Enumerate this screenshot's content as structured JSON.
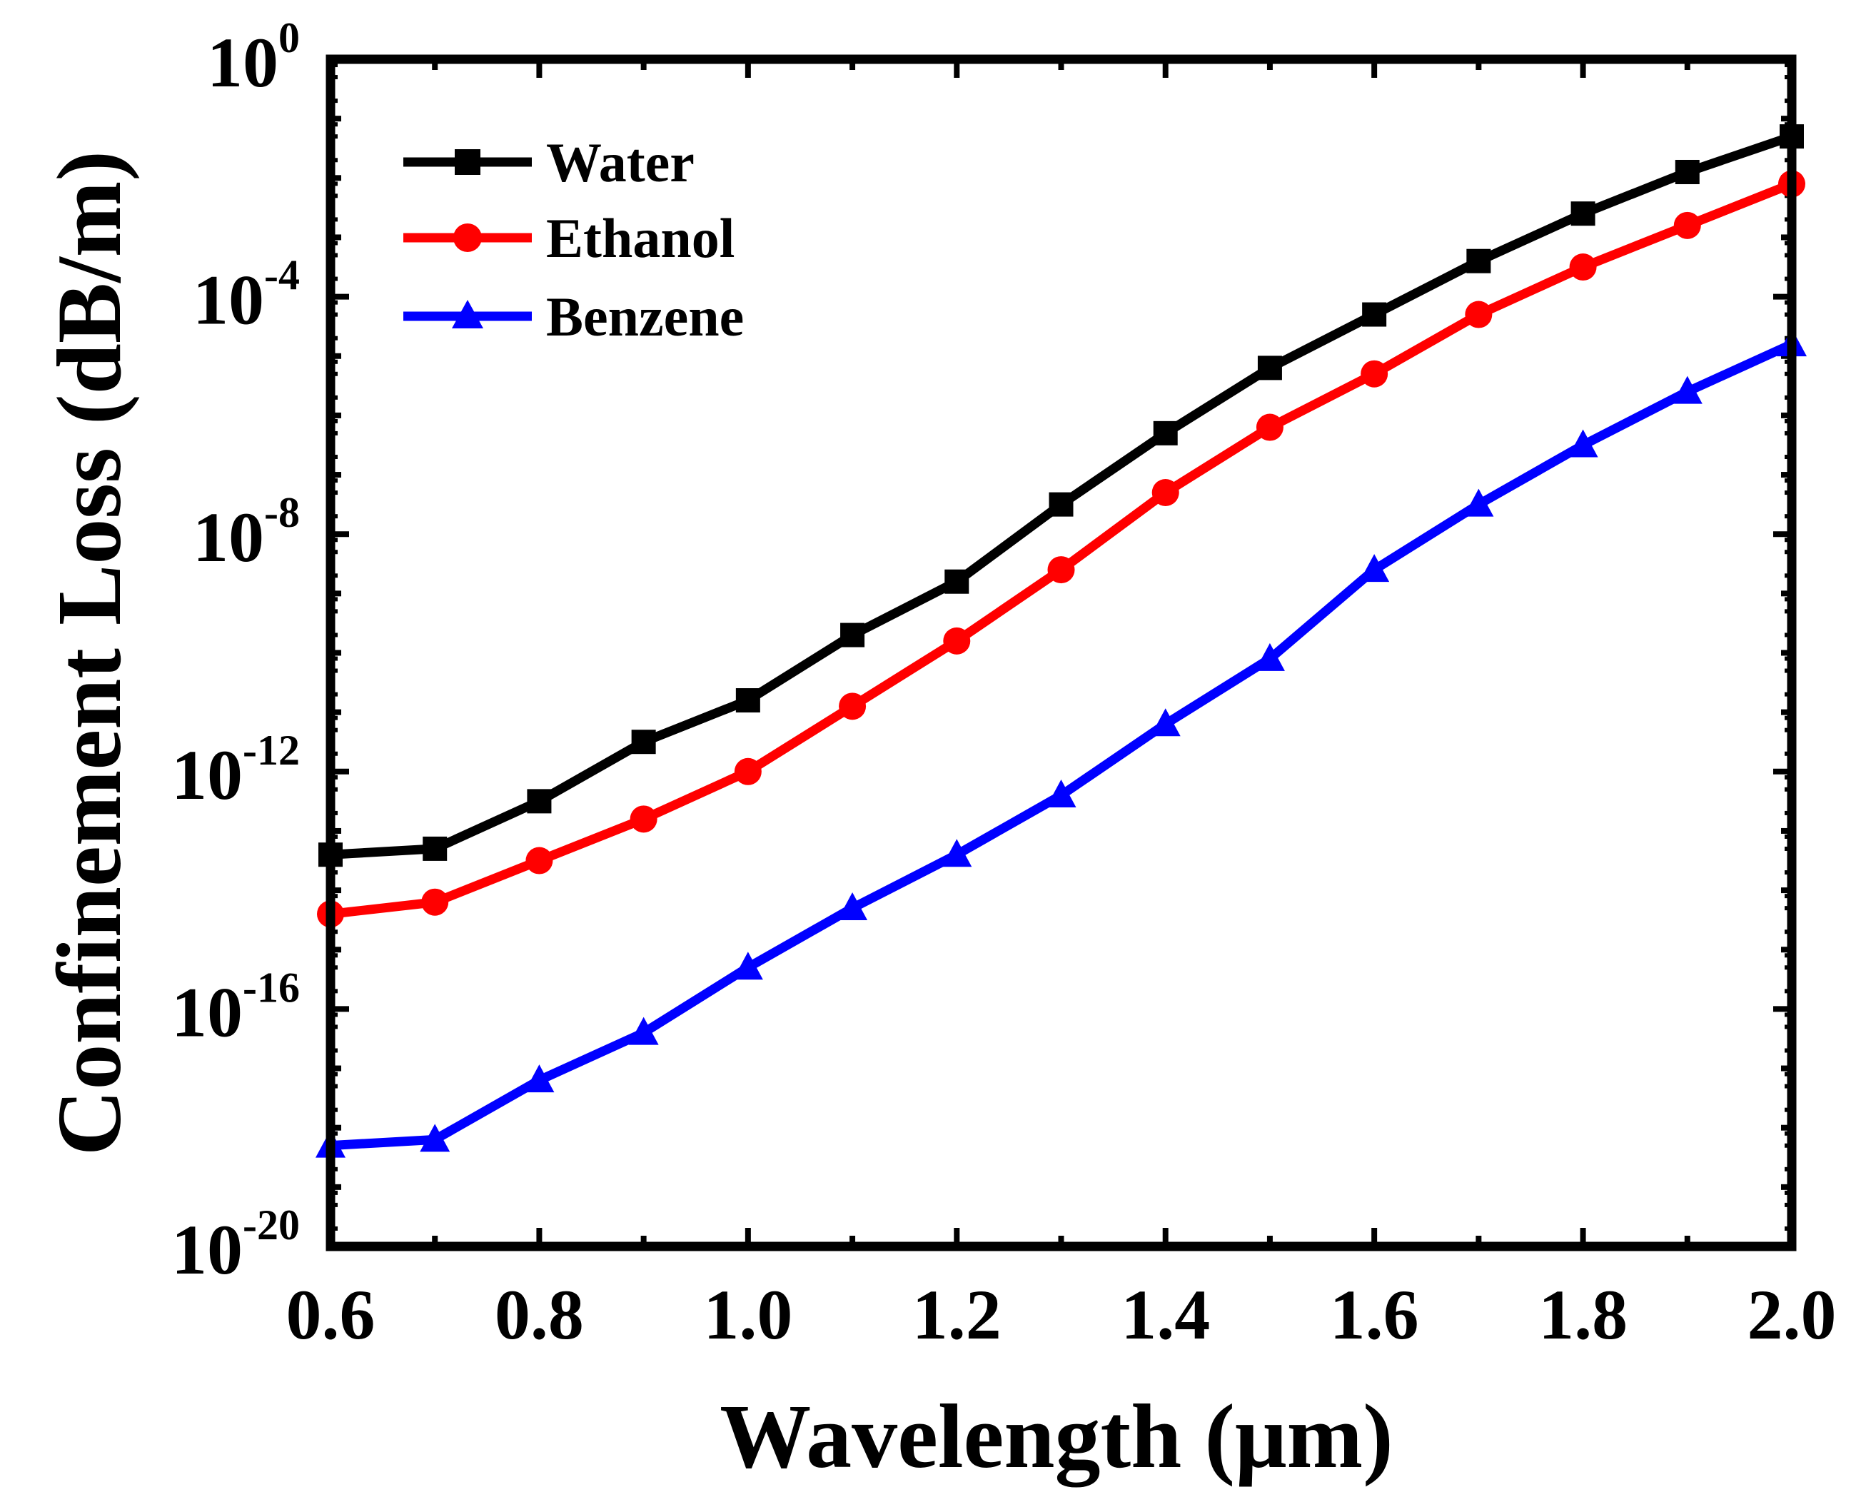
{
  "chart_data": {
    "type": "line",
    "xlabel": "Wavelength (μm)",
    "ylabel": "Confinement Loss (dB/m)",
    "yscale": "log",
    "xlim": [
      0.6,
      2.0
    ],
    "ylim_exponent": [
      -20,
      0
    ],
    "x": [
      0.6,
      0.7,
      0.8,
      0.9,
      1.0,
      1.1,
      1.2,
      1.3,
      1.4,
      1.5,
      1.6,
      1.7,
      1.8,
      1.9,
      2.0
    ],
    "x_ticks": [
      "0.6",
      "0.8",
      "1.0",
      "1.2",
      "1.4",
      "1.6",
      "1.8",
      "2.0"
    ],
    "y_ticks": [
      {
        "base": "10",
        "exp": "0"
      },
      {
        "base": "10",
        "exp": "-4"
      },
      {
        "base": "10",
        "exp": "-8"
      },
      {
        "base": "10",
        "exp": "-12"
      },
      {
        "base": "10",
        "exp": "-16"
      },
      {
        "base": "10",
        "exp": "-20"
      }
    ],
    "series_log10_note": "values are log10 of confinement loss in dB/m",
    "series": [
      {
        "name": "Water",
        "color": "#000000",
        "marker": "square",
        "log10_values": [
          -13.4,
          -13.3,
          -12.5,
          -11.5,
          -10.8,
          -9.7,
          -8.8,
          -7.5,
          -6.3,
          -5.2,
          -4.3,
          -3.4,
          -2.6,
          -1.9,
          -1.3
        ]
      },
      {
        "name": "Ethanol",
        "color": "#ff0000",
        "marker": "circle",
        "log10_values": [
          -14.4,
          -14.2,
          -13.5,
          -12.8,
          -12.0,
          -10.9,
          -9.8,
          -8.6,
          -7.3,
          -6.2,
          -5.3,
          -4.3,
          -3.5,
          -2.8,
          -2.1
        ]
      },
      {
        "name": "Benzene",
        "color": "#0000ff",
        "marker": "triangle",
        "log10_values": [
          -18.3,
          -18.2,
          -17.2,
          -16.4,
          -15.3,
          -14.3,
          -13.4,
          -12.4,
          -11.2,
          -10.1,
          -8.6,
          -7.5,
          -6.5,
          -5.6,
          -4.8
        ]
      }
    ]
  }
}
